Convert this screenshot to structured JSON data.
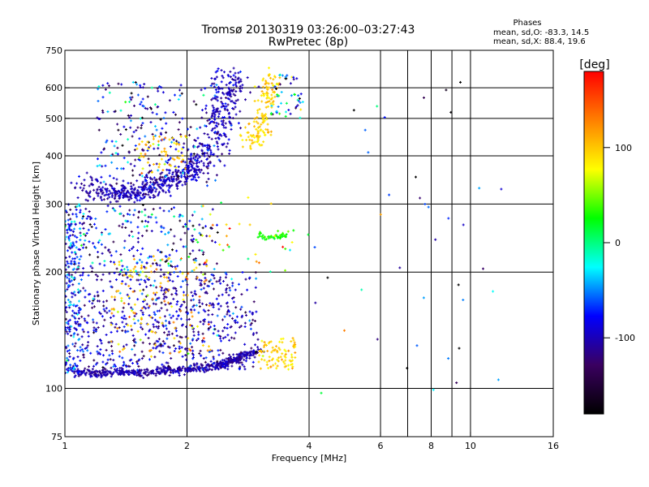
{
  "chart_data": {
    "type": "scatter",
    "title": "Tromsø 20130319 03:26:00–03:27:43",
    "subtitle": "RwPretec (8p)",
    "xlabel": "Frequency [MHz]",
    "ylabel": "Stationary phase Virtual Height [km]",
    "x_scale": "log",
    "y_scale": "log",
    "xlim": [
      1,
      16
    ],
    "ylim": [
      75,
      750
    ],
    "x_ticks": [
      1,
      2,
      4,
      6,
      8,
      10,
      16
    ],
    "y_ticks": [
      75,
      100,
      200,
      300,
      400,
      500,
      600,
      750
    ],
    "x_grid": [
      2,
      4,
      6,
      7,
      8,
      9,
      10,
      16
    ],
    "y_grid": [
      100,
      200,
      300,
      400,
      500,
      600
    ],
    "grid": true,
    "legend": {
      "title": "Phases",
      "lines": [
        "mean, sd,O: -83.3, 14.5",
        "mean, sd,X:  88.4, 19.6"
      ],
      "placement": "top-right"
    },
    "colorbar": {
      "label": "[deg]",
      "range": [
        -180,
        180
      ],
      "ticks": [
        100,
        0,
        -100
      ],
      "stops": [
        "#000000",
        "#3a0060",
        "#0000ff",
        "#00ffff",
        "#00ff00",
        "#ffff00",
        "#ff8000",
        "#ff0000"
      ]
    },
    "clusters": [
      {
        "kind": "curve",
        "x": [
          1.12,
          1.2,
          1.3,
          1.4,
          1.5,
          1.6,
          1.7,
          1.8,
          1.9,
          2.0,
          2.1,
          2.2,
          2.3,
          2.4,
          2.45,
          2.5,
          2.55,
          2.58
        ],
        "y": [
          345,
          325,
          315,
          318,
          322,
          328,
          335,
          345,
          355,
          365,
          380,
          400,
          430,
          470,
          510,
          560,
          610,
          650
        ],
        "n": 700,
        "jx": 0.05,
        "jy": 0.035,
        "phase": -100,
        "phase_sd": 12
      },
      {
        "kind": "region",
        "x": [
          1.2,
          2.4
        ],
        "y": [
          330,
          620
        ],
        "n": 260,
        "phase": -95,
        "phase_sd": 40
      },
      {
        "kind": "region",
        "x": [
          1.5,
          2.0
        ],
        "y": [
          360,
          450
        ],
        "n": 60,
        "phase": 100,
        "phase_sd": 20
      },
      {
        "kind": "curve",
        "x": [
          2.8,
          2.9,
          3.0,
          3.05,
          3.1,
          3.15,
          3.2,
          3.25
        ],
        "y": [
          430,
          440,
          460,
          480,
          510,
          550,
          600,
          650
        ],
        "n": 150,
        "jx": 0.03,
        "jy": 0.025,
        "phase": 95,
        "phase_sd": 12
      },
      {
        "kind": "region",
        "x": [
          3.2,
          3.9
        ],
        "y": [
          500,
          650
        ],
        "n": 50,
        "phase": -60,
        "phase_sd": 60
      },
      {
        "kind": "curve",
        "x": [
          1.04,
          1.2,
          1.4,
          1.6,
          1.8,
          2.0,
          2.2,
          2.4,
          2.6,
          2.8,
          3.0
        ],
        "y": [
          111,
          109,
          110,
          110,
          111,
          112,
          113,
          115,
          118,
          122,
          126
        ],
        "n": 550,
        "jx": 0.02,
        "jy": 0.012,
        "phase": -105,
        "phase_sd": 10
      },
      {
        "kind": "region",
        "x": [
          1.0,
          3.0
        ],
        "y": [
          112,
          200
        ],
        "n": 700,
        "phase": -100,
        "phase_sd": 25
      },
      {
        "kind": "region",
        "x": [
          1.0,
          2.4
        ],
        "y": [
          200,
          300
        ],
        "n": 260,
        "phase": -85,
        "phase_sd": 50
      },
      {
        "kind": "region",
        "x": [
          1.0,
          1.1
        ],
        "y": [
          110,
          300
        ],
        "n": 180,
        "phase": -70,
        "phase_sd": 30
      },
      {
        "kind": "region",
        "x": [
          1.3,
          2.3
        ],
        "y": [
          120,
          220
        ],
        "n": 140,
        "phase": 100,
        "phase_sd": 25
      },
      {
        "kind": "region",
        "x": [
          3.0,
          3.7
        ],
        "y": [
          112,
          135
        ],
        "n": 90,
        "phase": 95,
        "phase_sd": 15
      },
      {
        "kind": "curve",
        "x": [
          3.0,
          3.2,
          3.4,
          3.5
        ],
        "y": [
          250,
          246,
          247,
          250
        ],
        "n": 45,
        "jx": 0.01,
        "jy": 0.008,
        "phase": 30,
        "phase_sd": 8
      },
      {
        "kind": "region",
        "x": [
          2.0,
          4.0
        ],
        "y": [
          200,
          320
        ],
        "n": 35,
        "phase": 60,
        "phase_sd": 60
      },
      {
        "kind": "region",
        "x": [
          4.0,
          12.0
        ],
        "y": [
          85,
          650
        ],
        "n": 40,
        "phase": -80,
        "phase_sd": 90
      }
    ]
  }
}
